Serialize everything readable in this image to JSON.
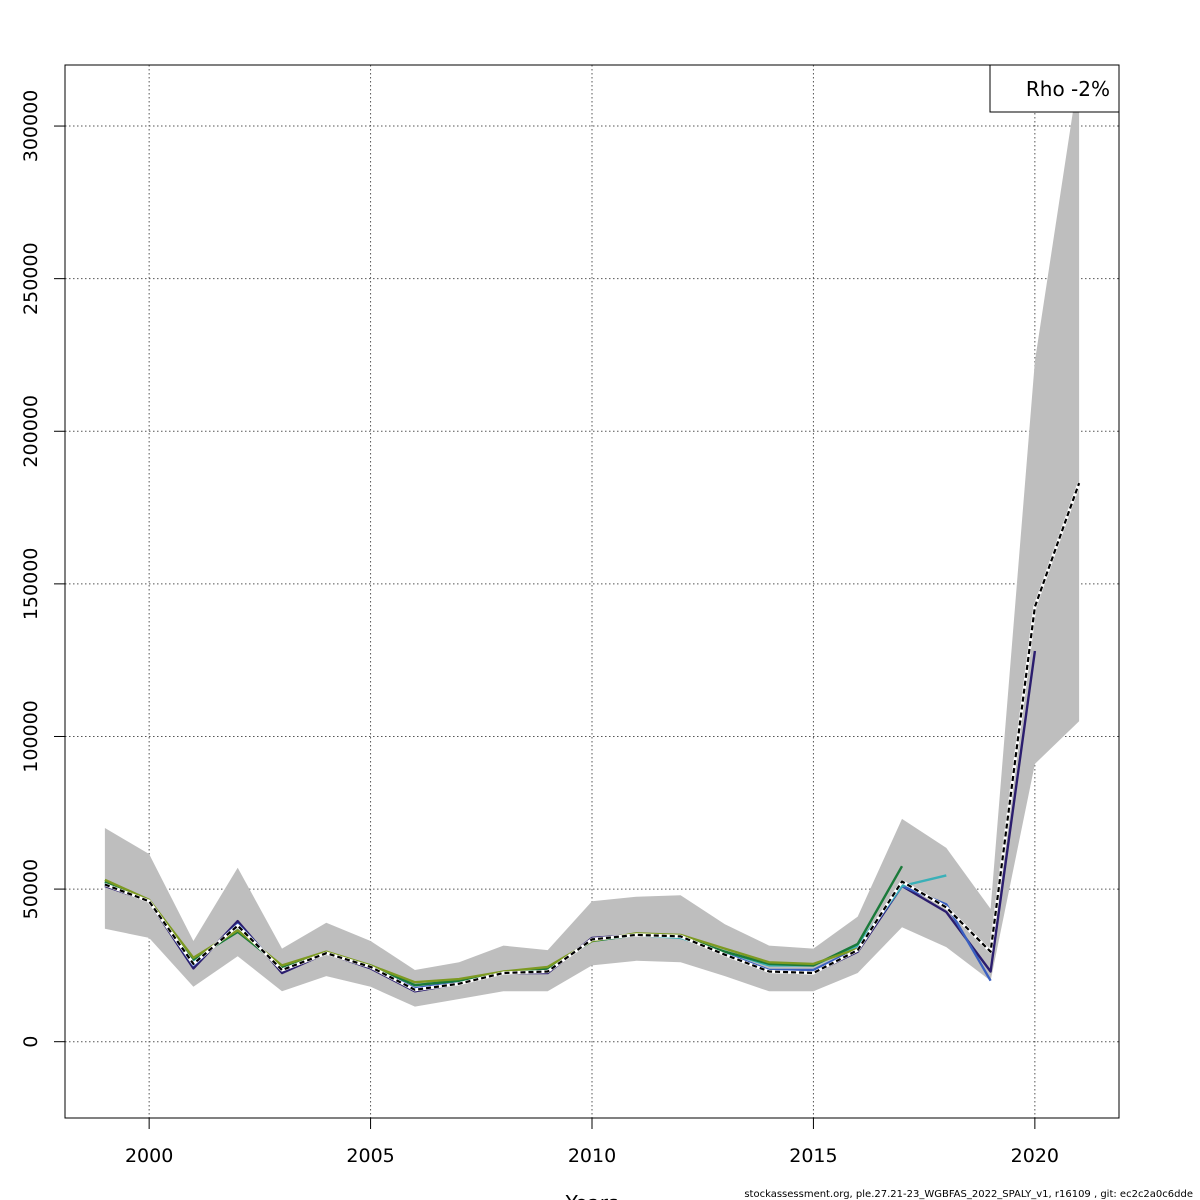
{
  "chart_data": {
    "type": "line",
    "xlabel": "Years",
    "ylabel": "",
    "xlim": [
      1998.1,
      2021.9
    ],
    "ylim": [
      -25000,
      320000
    ],
    "xticks": [
      2000,
      2005,
      2010,
      2015,
      2020
    ],
    "yticks": [
      0,
      50000,
      100000,
      150000,
      200000,
      250000,
      300000
    ],
    "grid": true,
    "legend": {
      "position": "top-right",
      "text": "Rho -2%"
    },
    "confidence_band": {
      "x": [
        1999,
        2000,
        2001,
        2002,
        2003,
        2004,
        2005,
        2006,
        2007,
        2008,
        2009,
        2010,
        2011,
        2012,
        2013,
        2014,
        2015,
        2016,
        2017,
        2018,
        2019,
        2020,
        2021
      ],
      "lower": [
        37000,
        34000,
        18000,
        28000,
        16500,
        21500,
        18000,
        11500,
        14000,
        16500,
        16500,
        25000,
        26500,
        26000,
        21500,
        16500,
        16500,
        22500,
        37500,
        31000,
        20000,
        91000,
        105000
      ],
      "upper": [
        70000,
        61500,
        33000,
        57000,
        30500,
        39000,
        33000,
        23500,
        26000,
        31500,
        30000,
        46000,
        47500,
        48000,
        38500,
        31500,
        30500,
        41000,
        73000,
        63500,
        43500,
        223000,
        318000
      ]
    },
    "series": [
      {
        "color": "#2b1d6e",
        "x": [
          1999,
          2000,
          2001,
          2002,
          2003,
          2004,
          2005,
          2006,
          2007,
          2008,
          2009,
          2010,
          2011,
          2012,
          2013,
          2014,
          2015,
          2016,
          2017,
          2018,
          2019,
          2020
        ],
        "values": [
          51000,
          46000,
          24000,
          39500,
          22500,
          29000,
          24000,
          16500,
          19000,
          22500,
          22500,
          34000,
          35000,
          34500,
          28500,
          23000,
          22500,
          29500,
          51000,
          42500,
          23000,
          128000
        ]
      },
      {
        "color": "#3a5fc0",
        "x": [
          1999,
          2000,
          2001,
          2002,
          2003,
          2004,
          2005,
          2006,
          2007,
          2008,
          2009,
          2010,
          2011,
          2012,
          2013,
          2014,
          2015,
          2016,
          2017,
          2018,
          2019
        ],
        "values": [
          51500,
          46000,
          25000,
          38500,
          23500,
          29000,
          24500,
          17500,
          19500,
          22500,
          23000,
          33500,
          35000,
          34500,
          29000,
          23500,
          23500,
          30500,
          51000,
          45000,
          20000
        ]
      },
      {
        "color": "#3ab0b8",
        "x": [
          1999,
          2000,
          2001,
          2002,
          2003,
          2004,
          2005,
          2006,
          2007,
          2008,
          2009,
          2010,
          2011,
          2012,
          2013,
          2014,
          2015,
          2016,
          2017,
          2018
        ],
        "values": [
          52000,
          46000,
          26500,
          36500,
          24500,
          29000,
          25000,
          18500,
          20000,
          22500,
          24000,
          33000,
          35000,
          34000,
          29500,
          25000,
          25000,
          31500,
          51000,
          54500
        ]
      },
      {
        "color": "#1a7a3a",
        "x": [
          1999,
          2000,
          2001,
          2002,
          2003,
          2004,
          2005,
          2006,
          2007,
          2008,
          2009,
          2010,
          2011,
          2012,
          2013,
          2014,
          2015,
          2016,
          2017
        ],
        "values": [
          52500,
          46000,
          27000,
          36000,
          24500,
          29000,
          25000,
          18500,
          20000,
          22500,
          24000,
          33000,
          35000,
          34500,
          29500,
          25500,
          25000,
          32000,
          57500
        ]
      },
      {
        "color": "#7d9a22",
        "x": [
          1999,
          2000,
          2001,
          2002,
          2003,
          2004,
          2005,
          2006,
          2007,
          2008,
          2009,
          2010,
          2011,
          2012,
          2013,
          2014,
          2015,
          2016
        ],
        "values": [
          53000,
          46500,
          27500,
          36500,
          25000,
          29500,
          25000,
          19500,
          20500,
          23000,
          24500,
          33000,
          35500,
          35000,
          30500,
          26000,
          25500,
          30500
        ]
      },
      {
        "color": "#000000",
        "dashed": true,
        "x": [
          1999,
          2000,
          2001,
          2002,
          2003,
          2004,
          2005,
          2006,
          2007,
          2008,
          2009,
          2010,
          2011,
          2012,
          2013,
          2014,
          2015,
          2016,
          2017,
          2018,
          2019,
          2020,
          2021
        ],
        "values": [
          51500,
          46000,
          25500,
          38000,
          23500,
          29000,
          24500,
          17000,
          19000,
          22500,
          23000,
          33500,
          35000,
          34500,
          28500,
          23000,
          22500,
          30000,
          52500,
          44000,
          29500,
          142500,
          183000
        ]
      }
    ]
  },
  "footer": "stockassessment.org, ple.27.21-23_WGBFAS_2022_SPALY_v1, r16109 , git: ec2c2a0c6dde"
}
